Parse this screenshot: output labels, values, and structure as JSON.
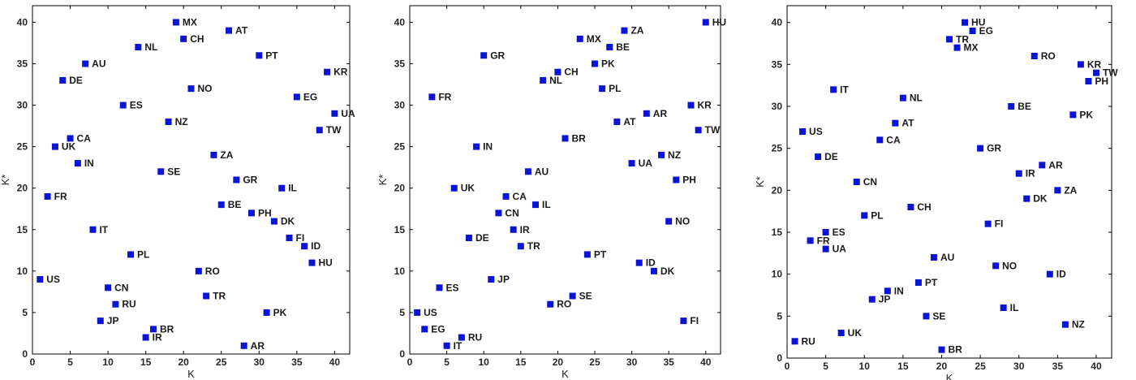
{
  "chart_data": [
    {
      "type": "scatter",
      "xlabel": "K",
      "ylabel": "K*",
      "xlim": [
        0,
        42
      ],
      "ylim": [
        0,
        42
      ],
      "xticks": [
        0,
        5,
        10,
        15,
        20,
        25,
        30,
        35,
        40
      ],
      "yticks": [
        0,
        5,
        10,
        15,
        20,
        25,
        30,
        35,
        40
      ],
      "grid": false,
      "marker_color": "#0a14d2",
      "points": [
        {
          "label": "MX",
          "x": 19,
          "y": 40
        },
        {
          "label": "AT",
          "x": 26,
          "y": 39
        },
        {
          "label": "CH",
          "x": 20,
          "y": 38
        },
        {
          "label": "NL",
          "x": 14,
          "y": 37
        },
        {
          "label": "PT",
          "x": 30,
          "y": 36
        },
        {
          "label": "AU",
          "x": 7,
          "y": 35
        },
        {
          "label": "KR",
          "x": 39,
          "y": 34
        },
        {
          "label": "DE",
          "x": 4,
          "y": 33
        },
        {
          "label": "NO",
          "x": 21,
          "y": 32
        },
        {
          "label": "EG",
          "x": 35,
          "y": 31
        },
        {
          "label": "ES",
          "x": 12,
          "y": 30
        },
        {
          "label": "UA",
          "x": 40,
          "y": 29
        },
        {
          "label": "NZ",
          "x": 18,
          "y": 28
        },
        {
          "label": "TW",
          "x": 38,
          "y": 27
        },
        {
          "label": "CA",
          "x": 5,
          "y": 26
        },
        {
          "label": "UK",
          "x": 3,
          "y": 25
        },
        {
          "label": "ZA",
          "x": 24,
          "y": 24
        },
        {
          "label": "IN",
          "x": 6,
          "y": 23
        },
        {
          "label": "SE",
          "x": 17,
          "y": 22
        },
        {
          "label": "GR",
          "x": 27,
          "y": 21
        },
        {
          "label": "IL",
          "x": 33,
          "y": 20
        },
        {
          "label": "FR",
          "x": 2,
          "y": 19
        },
        {
          "label": "BE",
          "x": 25,
          "y": 18
        },
        {
          "label": "PH",
          "x": 29,
          "y": 17
        },
        {
          "label": "DK",
          "x": 32,
          "y": 16
        },
        {
          "label": "IT",
          "x": 8,
          "y": 15
        },
        {
          "label": "FI",
          "x": 34,
          "y": 14
        },
        {
          "label": "ID",
          "x": 36,
          "y": 13
        },
        {
          "label": "PL",
          "x": 13,
          "y": 12
        },
        {
          "label": "HU",
          "x": 37,
          "y": 11
        },
        {
          "label": "RO",
          "x": 22,
          "y": 10
        },
        {
          "label": "US",
          "x": 1,
          "y": 9
        },
        {
          "label": "CN",
          "x": 10,
          "y": 8
        },
        {
          "label": "TR",
          "x": 23,
          "y": 7
        },
        {
          "label": "RU",
          "x": 11,
          "y": 6
        },
        {
          "label": "PK",
          "x": 31,
          "y": 5
        },
        {
          "label": "JP",
          "x": 9,
          "y": 4
        },
        {
          "label": "BR",
          "x": 16,
          "y": 3
        },
        {
          "label": "IR",
          "x": 15,
          "y": 2
        },
        {
          "label": "AR",
          "x": 28,
          "y": 1
        }
      ]
    },
    {
      "type": "scatter",
      "xlabel": "K",
      "ylabel": "K*",
      "xlim": [
        0,
        42
      ],
      "ylim": [
        0,
        42
      ],
      "xticks": [
        0,
        5,
        10,
        15,
        20,
        25,
        30,
        35,
        40
      ],
      "yticks": [
        0,
        5,
        10,
        15,
        20,
        25,
        30,
        35,
        40
      ],
      "grid": false,
      "marker_color": "#0a14d2",
      "points": [
        {
          "label": "HU",
          "x": 40,
          "y": 40
        },
        {
          "label": "ZA",
          "x": 29,
          "y": 39
        },
        {
          "label": "MX",
          "x": 23,
          "y": 38
        },
        {
          "label": "BE",
          "x": 27,
          "y": 37
        },
        {
          "label": "GR",
          "x": 10,
          "y": 36
        },
        {
          "label": "PK",
          "x": 25,
          "y": 35
        },
        {
          "label": "CH",
          "x": 20,
          "y": 34
        },
        {
          "label": "NL",
          "x": 18,
          "y": 33
        },
        {
          "label": "PL",
          "x": 26,
          "y": 32
        },
        {
          "label": "FR",
          "x": 3,
          "y": 31
        },
        {
          "label": "KR",
          "x": 38,
          "y": 30
        },
        {
          "label": "AR",
          "x": 32,
          "y": 29
        },
        {
          "label": "AT",
          "x": 28,
          "y": 28
        },
        {
          "label": "TW",
          "x": 39,
          "y": 27
        },
        {
          "label": "BR",
          "x": 21,
          "y": 26
        },
        {
          "label": "IN",
          "x": 9,
          "y": 25
        },
        {
          "label": "NZ",
          "x": 34,
          "y": 24
        },
        {
          "label": "UA",
          "x": 30,
          "y": 23
        },
        {
          "label": "AU",
          "x": 16,
          "y": 22
        },
        {
          "label": "PH",
          "x": 36,
          "y": 21
        },
        {
          "label": "UK",
          "x": 6,
          "y": 20
        },
        {
          "label": "CA",
          "x": 13,
          "y": 19
        },
        {
          "label": "IL",
          "x": 17,
          "y": 18
        },
        {
          "label": "CN",
          "x": 12,
          "y": 17
        },
        {
          "label": "NO",
          "x": 35,
          "y": 16
        },
        {
          "label": "IR",
          "x": 14,
          "y": 15
        },
        {
          "label": "DE",
          "x": 8,
          "y": 14
        },
        {
          "label": "TR",
          "x": 15,
          "y": 13
        },
        {
          "label": "PT",
          "x": 24,
          "y": 12
        },
        {
          "label": "ID",
          "x": 31,
          "y": 11
        },
        {
          "label": "DK",
          "x": 33,
          "y": 10
        },
        {
          "label": "JP",
          "x": 11,
          "y": 9
        },
        {
          "label": "ES",
          "x": 4,
          "y": 8
        },
        {
          "label": "SE",
          "x": 22,
          "y": 7
        },
        {
          "label": "RO",
          "x": 19,
          "y": 6
        },
        {
          "label": "US",
          "x": 1,
          "y": 5
        },
        {
          "label": "FI",
          "x": 37,
          "y": 4
        },
        {
          "label": "EG",
          "x": 2,
          "y": 3
        },
        {
          "label": "RU",
          "x": 7,
          "y": 2
        },
        {
          "label": "IT",
          "x": 5,
          "y": 1
        }
      ]
    },
    {
      "type": "scatter",
      "xlabel": "K",
      "ylabel": "K*",
      "xlim": [
        0,
        42
      ],
      "ylim": [
        0,
        42
      ],
      "xticks": [
        0,
        5,
        10,
        15,
        20,
        25,
        30,
        35,
        40
      ],
      "yticks": [
        0,
        5,
        10,
        15,
        20,
        25,
        30,
        35,
        40
      ],
      "grid": false,
      "marker_color": "#0a14d2",
      "points": [
        {
          "label": "HU",
          "x": 23,
          "y": 40
        },
        {
          "label": "EG",
          "x": 24,
          "y": 39
        },
        {
          "label": "TR",
          "x": 21,
          "y": 38
        },
        {
          "label": "MX",
          "x": 22,
          "y": 37
        },
        {
          "label": "RO",
          "x": 32,
          "y": 36
        },
        {
          "label": "KR",
          "x": 38,
          "y": 35
        },
        {
          "label": "TW",
          "x": 40,
          "y": 34
        },
        {
          "label": "PH",
          "x": 39,
          "y": 33
        },
        {
          "label": "IT",
          "x": 6,
          "y": 32
        },
        {
          "label": "NL",
          "x": 15,
          "y": 31
        },
        {
          "label": "BE",
          "x": 29,
          "y": 30
        },
        {
          "label": "PK",
          "x": 37,
          "y": 29
        },
        {
          "label": "AT",
          "x": 14,
          "y": 28
        },
        {
          "label": "US",
          "x": 2,
          "y": 27
        },
        {
          "label": "CA",
          "x": 12,
          "y": 26
        },
        {
          "label": "GR",
          "x": 25,
          "y": 25
        },
        {
          "label": "DE",
          "x": 4,
          "y": 24
        },
        {
          "label": "AR",
          "x": 33,
          "y": 23
        },
        {
          "label": "IR",
          "x": 30,
          "y": 22
        },
        {
          "label": "CN",
          "x": 9,
          "y": 21
        },
        {
          "label": "ZA",
          "x": 35,
          "y": 20
        },
        {
          "label": "DK",
          "x": 31,
          "y": 19
        },
        {
          "label": "CH",
          "x": 16,
          "y": 18
        },
        {
          "label": "PL",
          "x": 10,
          "y": 17
        },
        {
          "label": "FI",
          "x": 26,
          "y": 16
        },
        {
          "label": "ES",
          "x": 5,
          "y": 15
        },
        {
          "label": "FR",
          "x": 3,
          "y": 14
        },
        {
          "label": "UA",
          "x": 5,
          "y": 13
        },
        {
          "label": "AU",
          "x": 19,
          "y": 12
        },
        {
          "label": "NO",
          "x": 27,
          "y": 11
        },
        {
          "label": "ID",
          "x": 34,
          "y": 10
        },
        {
          "label": "PT",
          "x": 17,
          "y": 9
        },
        {
          "label": "IN",
          "x": 13,
          "y": 8
        },
        {
          "label": "JP",
          "x": 11,
          "y": 7
        },
        {
          "label": "IL",
          "x": 28,
          "y": 6
        },
        {
          "label": "SE",
          "x": 18,
          "y": 5
        },
        {
          "label": "NZ",
          "x": 36,
          "y": 4
        },
        {
          "label": "UK",
          "x": 7,
          "y": 3
        },
        {
          "label": "RU",
          "x": 1,
          "y": 2
        },
        {
          "label": "BR",
          "x": 20,
          "y": 1
        }
      ]
    }
  ]
}
